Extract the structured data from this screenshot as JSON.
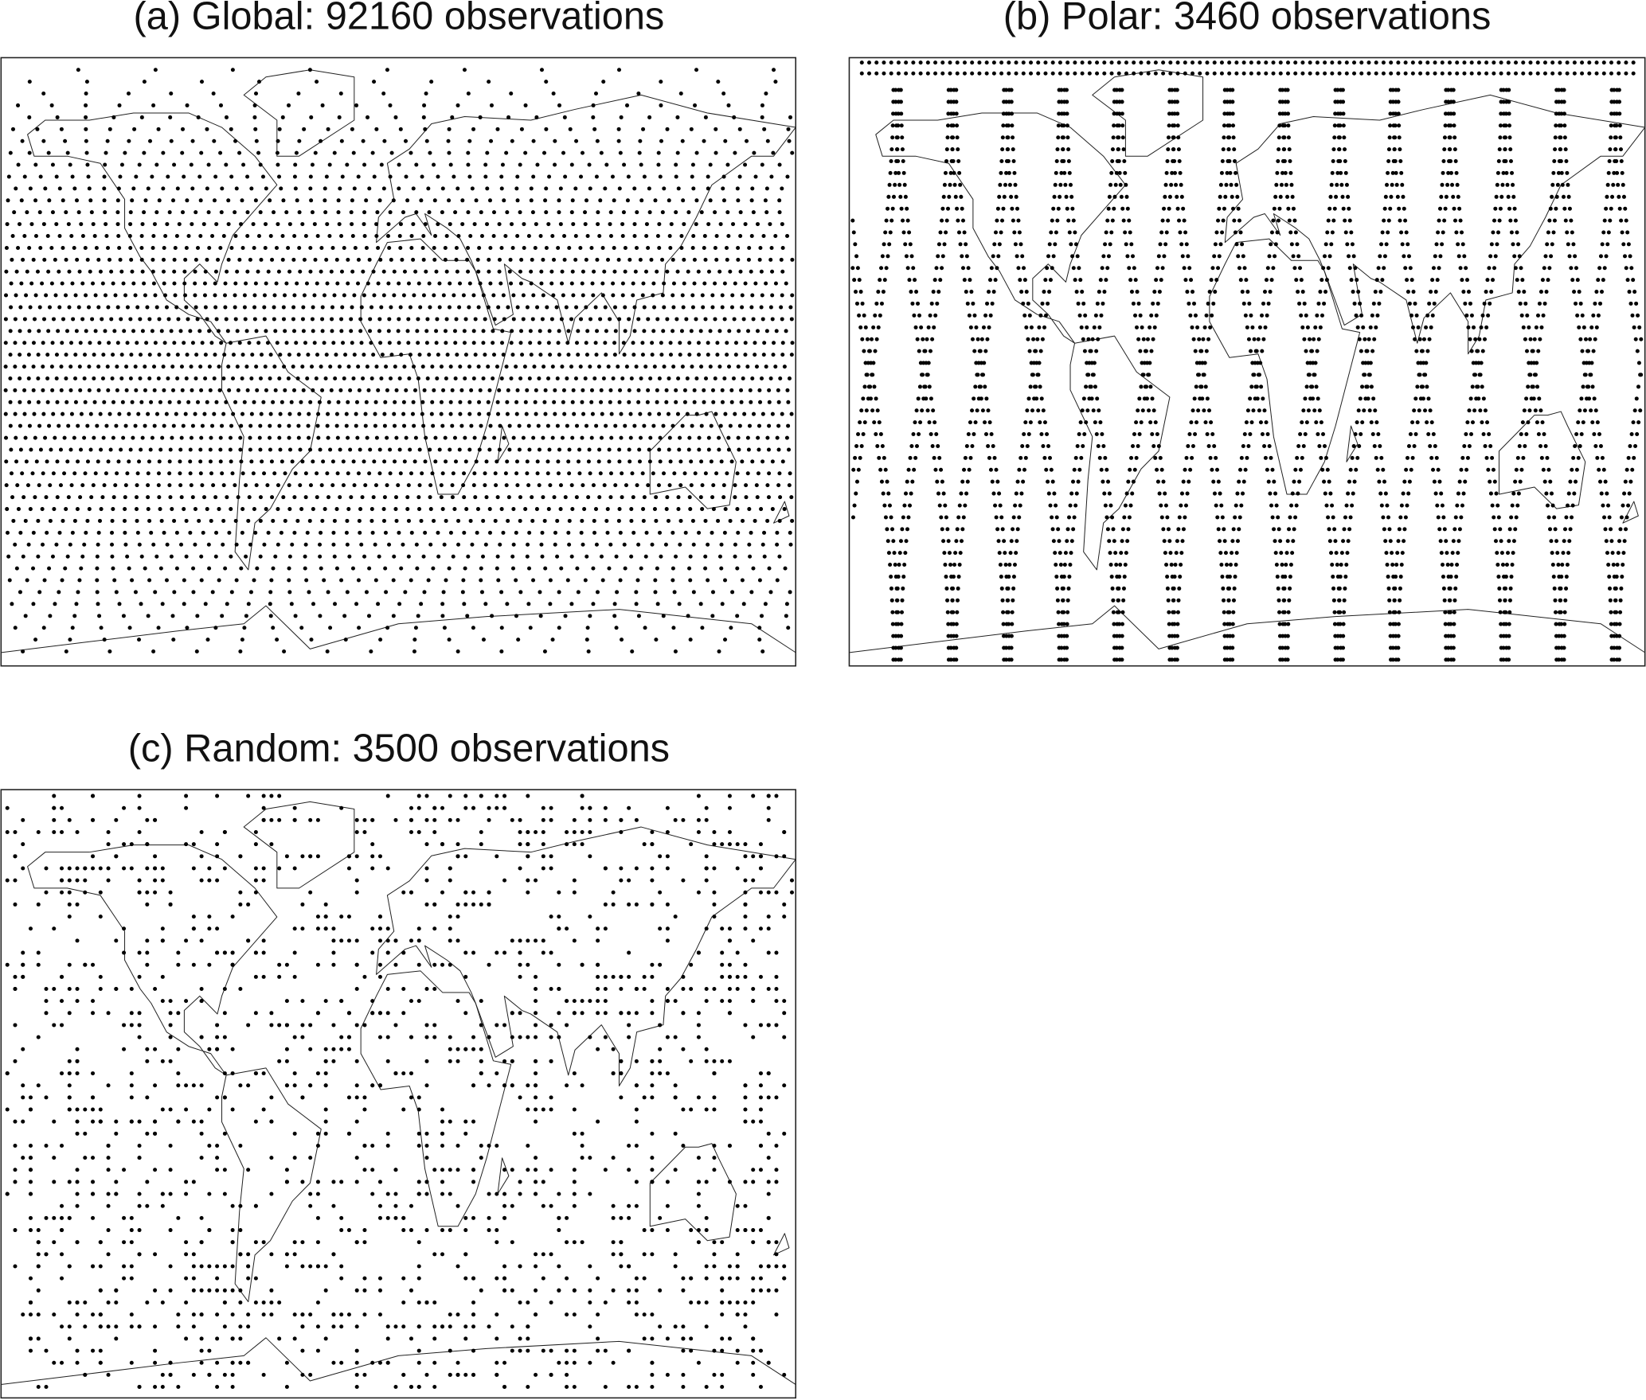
{
  "panels": [
    {
      "title": "(a)  Global: 92160  observations"
    },
    {
      "title": "(b)  Polar: 3460  observations"
    },
    {
      "title": "(c)  Random: 3500  observations"
    }
  ]
}
